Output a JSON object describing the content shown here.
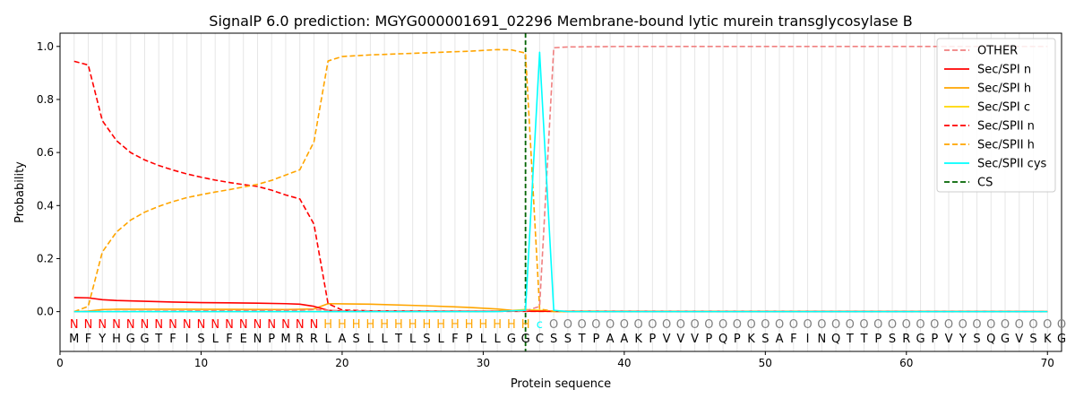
{
  "chart_data": {
    "type": "line",
    "title": "SignalP 6.0 prediction: MGYG000001691_02296 Membrane-bound lytic murein transglycosylase B",
    "xlabel": "Protein sequence",
    "ylabel": "Probability",
    "xlim": [
      0,
      71
    ],
    "ylim": [
      -0.15,
      1.05
    ],
    "xticks": [
      0,
      10,
      20,
      30,
      40,
      50,
      60,
      70
    ],
    "yticks": [
      0.0,
      0.2,
      0.4,
      0.6,
      0.8,
      1.0
    ],
    "grid": "vertical lines at each residue",
    "legend_position": "upper-right",
    "cleavage_site": 33,
    "sequence": [
      "M",
      "F",
      "Y",
      "H",
      "G",
      "G",
      "T",
      "F",
      "I",
      "S",
      "L",
      "F",
      "E",
      "N",
      "P",
      "M",
      "R",
      "R",
      "L",
      "A",
      "S",
      "L",
      "L",
      "T",
      "L",
      "S",
      "L",
      "F",
      "P",
      "L",
      "L",
      "G",
      "G",
      "C",
      "S",
      "S",
      "T",
      "P",
      "A",
      "A",
      "K",
      "P",
      "V",
      "V",
      "V",
      "P",
      "Q",
      "P",
      "K",
      "S",
      "A",
      "F",
      "I",
      "N",
      "Q",
      "T",
      "T",
      "P",
      "S",
      "R",
      "G",
      "P",
      "V",
      "Y",
      "S",
      "Q",
      "G",
      "V",
      "S",
      "K",
      "G"
    ],
    "region_labels": [
      "N",
      "N",
      "N",
      "N",
      "N",
      "N",
      "N",
      "N",
      "N",
      "N",
      "N",
      "N",
      "N",
      "N",
      "N",
      "N",
      "N",
      "N",
      "H",
      "H",
      "H",
      "H",
      "H",
      "H",
      "H",
      "H",
      "H",
      "H",
      "H",
      "H",
      "H",
      "H",
      "H",
      "c",
      "O",
      "O",
      "O",
      "O",
      "O",
      "O",
      "O",
      "O",
      "O",
      "O",
      "O",
      "O",
      "O",
      "O",
      "O",
      "O",
      "O",
      "O",
      "O",
      "O",
      "O",
      "O",
      "O",
      "O",
      "O",
      "O",
      "O",
      "O",
      "O",
      "O",
      "O",
      "O",
      "O",
      "O",
      "O",
      "O",
      "O"
    ],
    "region_colors": {
      "N": "#ff0000",
      "H": "#ffa500",
      "c": "#00ffff",
      "O": "#808080"
    },
    "series": [
      {
        "name": "OTHER",
        "color": "#f08080",
        "dash": true,
        "points": [
          [
            1,
            0.0
          ],
          [
            17,
            0.005
          ],
          [
            18,
            0.008
          ],
          [
            19,
            0.005
          ],
          [
            20,
            0.003
          ],
          [
            33,
            0.002
          ],
          [
            34,
            0.02
          ],
          [
            35,
            0.995
          ],
          [
            36,
            0.998
          ],
          [
            40,
            1.0
          ],
          [
            70,
            1.0
          ]
        ]
      },
      {
        "name": "Sec/SPI n",
        "color": "#ff0000",
        "dash": false,
        "points": [
          [
            1,
            0.053
          ],
          [
            2,
            0.052
          ],
          [
            3,
            0.045
          ],
          [
            4,
            0.042
          ],
          [
            6,
            0.039
          ],
          [
            8,
            0.036
          ],
          [
            10,
            0.034
          ],
          [
            12,
            0.033
          ],
          [
            14,
            0.032
          ],
          [
            16,
            0.03
          ],
          [
            17,
            0.028
          ],
          [
            18,
            0.02
          ],
          [
            19,
            0.005
          ],
          [
            20,
            0.002
          ],
          [
            70,
            0.0
          ]
        ]
      },
      {
        "name": "Sec/SPI h",
        "color": "#ffa500",
        "dash": false,
        "points": [
          [
            1,
            0.0
          ],
          [
            2,
            0.002
          ],
          [
            3,
            0.008
          ],
          [
            4,
            0.009
          ],
          [
            8,
            0.009
          ],
          [
            16,
            0.008
          ],
          [
            18,
            0.01
          ],
          [
            19,
            0.03
          ],
          [
            22,
            0.028
          ],
          [
            26,
            0.022
          ],
          [
            29,
            0.016
          ],
          [
            31,
            0.01
          ],
          [
            32,
            0.005
          ],
          [
            33,
            0.002
          ],
          [
            34,
            0.001
          ],
          [
            70,
            0.0
          ]
        ]
      },
      {
        "name": "Sec/SPI c",
        "color": "#ffd700",
        "dash": false,
        "points": [
          [
            1,
            0.0
          ],
          [
            30,
            0.0
          ],
          [
            32,
            0.004
          ],
          [
            33,
            0.008
          ],
          [
            34,
            0.005
          ],
          [
            35,
            0.0
          ],
          [
            70,
            0.0
          ]
        ]
      },
      {
        "name": "Sec/SPII n",
        "color": "#ff0000",
        "dash": true,
        "points": [
          [
            1,
            0.944
          ],
          [
            2,
            0.93
          ],
          [
            3,
            0.72
          ],
          [
            4,
            0.645
          ],
          [
            5,
            0.6
          ],
          [
            6,
            0.572
          ],
          [
            7,
            0.551
          ],
          [
            8,
            0.534
          ],
          [
            9,
            0.519
          ],
          [
            10,
            0.507
          ],
          [
            11,
            0.496
          ],
          [
            12,
            0.487
          ],
          [
            13,
            0.479
          ],
          [
            14,
            0.472
          ],
          [
            15,
            0.458
          ],
          [
            16,
            0.44
          ],
          [
            17,
            0.425
          ],
          [
            18,
            0.33
          ],
          [
            19,
            0.03
          ],
          [
            20,
            0.006
          ],
          [
            22,
            0.003
          ],
          [
            30,
            0.001
          ],
          [
            70,
            0.0
          ]
        ]
      },
      {
        "name": "Sec/SPII h",
        "color": "#ffa500",
        "dash": true,
        "points": [
          [
            1,
            0.0
          ],
          [
            2,
            0.02
          ],
          [
            3,
            0.225
          ],
          [
            4,
            0.3
          ],
          [
            5,
            0.345
          ],
          [
            6,
            0.375
          ],
          [
            7,
            0.397
          ],
          [
            8,
            0.415
          ],
          [
            9,
            0.43
          ],
          [
            10,
            0.441
          ],
          [
            11,
            0.451
          ],
          [
            12,
            0.46
          ],
          [
            13,
            0.47
          ],
          [
            14,
            0.48
          ],
          [
            15,
            0.495
          ],
          [
            16,
            0.515
          ],
          [
            17,
            0.535
          ],
          [
            18,
            0.64
          ],
          [
            19,
            0.945
          ],
          [
            20,
            0.962
          ],
          [
            22,
            0.968
          ],
          [
            26,
            0.976
          ],
          [
            29,
            0.982
          ],
          [
            31,
            0.988
          ],
          [
            32,
            0.987
          ],
          [
            33,
            0.975
          ],
          [
            34,
            0.01
          ],
          [
            35,
            0.001
          ],
          [
            70,
            0.0
          ]
        ]
      },
      {
        "name": "Sec/SPII cys",
        "color": "#00ffff",
        "dash": false,
        "points": [
          [
            1,
            0.0
          ],
          [
            31,
            0.0
          ],
          [
            32,
            0.003
          ],
          [
            33,
            0.005
          ],
          [
            34,
            0.978
          ],
          [
            35,
            0.005
          ],
          [
            36,
            0.0
          ],
          [
            70,
            0.0
          ]
        ]
      },
      {
        "name": "CS",
        "color": "#006400",
        "dash": true,
        "points": []
      }
    ]
  }
}
